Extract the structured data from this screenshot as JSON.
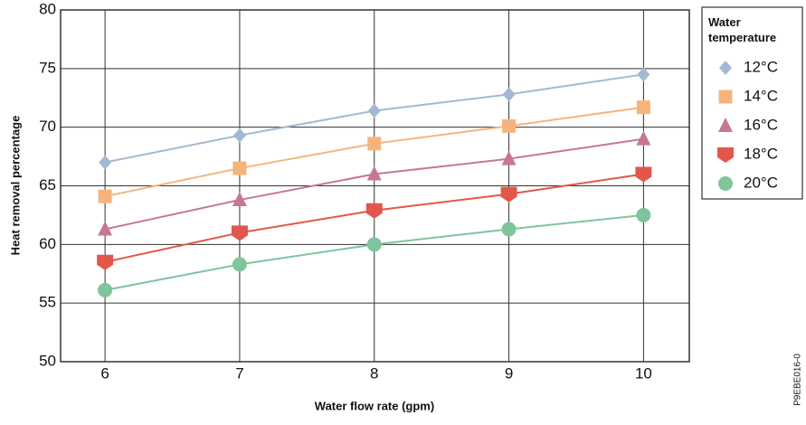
{
  "chart_data": {
    "type": "line",
    "xlabel": "Water flow rate (gpm)",
    "ylabel": "Heat removal percentage",
    "x": [
      6,
      7,
      8,
      9,
      10
    ],
    "xlim": [
      5.67,
      10.34
    ],
    "xticks": [
      6,
      7,
      8,
      9,
      10
    ],
    "ylim": [
      50,
      80
    ],
    "yticks": [
      50,
      55,
      60,
      65,
      70,
      75,
      80
    ],
    "grid": true,
    "legend_title": "Water temperature",
    "legend": "outside-right",
    "figure_id": "P9EBE016-0",
    "series": [
      {
        "name": "12°C",
        "color": "#a3b9d2",
        "marker": "diamond",
        "values": [
          67.0,
          69.3,
          71.4,
          72.8,
          74.5
        ]
      },
      {
        "name": "14°C",
        "color": "#f6b47c",
        "marker": "square",
        "values": [
          64.1,
          66.5,
          68.6,
          70.1,
          71.7
        ]
      },
      {
        "name": "16°C",
        "color": "#c7778f",
        "marker": "triangle",
        "values": [
          61.3,
          63.8,
          66.0,
          67.3,
          69.0
        ]
      },
      {
        "name": "18°C",
        "color": "#e2574a",
        "marker": "shield",
        "values": [
          58.5,
          61.0,
          62.9,
          64.3,
          66.0
        ]
      },
      {
        "name": "20°C",
        "color": "#80c49c",
        "marker": "circle",
        "values": [
          56.1,
          58.3,
          60.0,
          61.3,
          62.5
        ]
      }
    ]
  }
}
